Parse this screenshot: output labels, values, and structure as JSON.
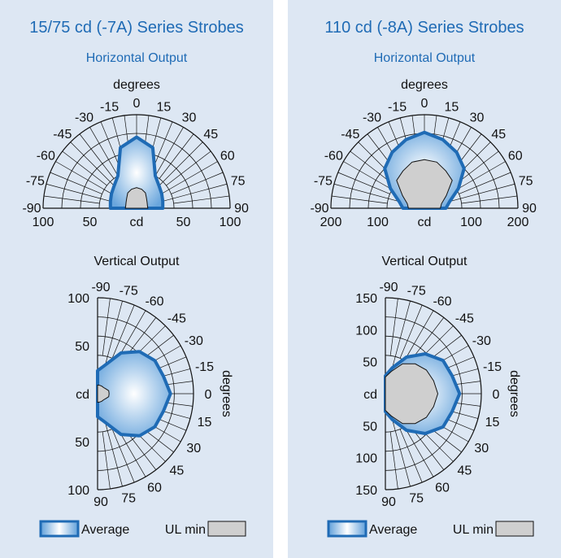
{
  "colors": {
    "panel_bg": "#dde7f3",
    "title": "#1f6bb5",
    "average_line": "#1f6bb5",
    "ul_min_fill": "#cfcfcf",
    "grid": "#111111"
  },
  "chart_data": [
    {
      "type": "polar",
      "title": "15/75 cd (-7A) Series Strobes",
      "horizontal": {
        "label": "Horizontal Output",
        "angle_unit_label": "degrees",
        "angle_ticks": [
          -90,
          -75,
          -60,
          -45,
          -30,
          -15,
          0,
          15,
          30,
          45,
          60,
          75,
          90
        ],
        "angle_tick_labels": [
          "-90",
          "-75",
          "-60",
          "-45",
          "-30",
          "-15",
          "0",
          "15",
          "30",
          "45",
          "60",
          "75",
          "90"
        ],
        "r_max": 100,
        "r_tick_labels": [
          "100",
          "50",
          "cd",
          "50",
          "100"
        ],
        "average": {
          "name": "Average",
          "angles": [
            -90,
            -75,
            -60,
            -45,
            -30,
            -15,
            0,
            15,
            30,
            45,
            60,
            75,
            90
          ],
          "values": [
            28,
            29,
            31,
            34,
            40,
            67,
            76,
            67,
            40,
            34,
            31,
            29,
            28
          ]
        },
        "ul_min": {
          "name": "UL min",
          "angles": [
            -90,
            -75,
            -60,
            -45,
            -30,
            -15,
            0,
            15,
            30,
            45,
            60,
            75,
            90
          ],
          "values": [
            12,
            12,
            13,
            15,
            19,
            21,
            22,
            21,
            19,
            15,
            13,
            12,
            12
          ]
        }
      },
      "vertical": {
        "label": "Vertical Output",
        "angle_unit_label": "degrees",
        "angle_ticks": [
          -90,
          -75,
          -60,
          -45,
          -30,
          -15,
          0,
          15,
          30,
          45,
          60,
          75,
          90
        ],
        "angle_tick_labels": [
          "-90",
          "-75",
          "-60",
          "-45",
          "-30",
          "-15",
          "0",
          "15",
          "30",
          "45",
          "60",
          "75",
          "90"
        ],
        "r_max": 100,
        "r_tick_labels": [
          "100",
          "50",
          "cd",
          "50",
          "100"
        ],
        "average": {
          "name": "Average",
          "angles": [
            -90,
            -75,
            -60,
            -45,
            -30,
            -15,
            0,
            15,
            30,
            45,
            60,
            75,
            90
          ],
          "values": [
            24,
            31,
            49,
            62,
            69,
            71,
            76,
            71,
            69,
            62,
            49,
            31,
            24
          ]
        },
        "ul_min": {
          "name": "UL min",
          "angles": [
            -90,
            -75,
            -60,
            -45,
            -30,
            -15,
            0,
            15,
            30,
            45,
            60,
            75,
            90
          ],
          "values": [
            9,
            9,
            9,
            9,
            10,
            12,
            12,
            12,
            10,
            9,
            9,
            9,
            9
          ]
        }
      },
      "legend": [
        "Average",
        "UL min"
      ]
    },
    {
      "type": "polar",
      "title": "110 cd (-8A) Series Strobes",
      "horizontal": {
        "label": "Horizontal Output",
        "angle_unit_label": "degrees",
        "angle_ticks": [
          -90,
          -75,
          -60,
          -45,
          -30,
          -15,
          0,
          15,
          30,
          45,
          60,
          75,
          90
        ],
        "angle_tick_labels": [
          "-90",
          "-75",
          "-60",
          "-45",
          "-30",
          "-15",
          "0",
          "15",
          "30",
          "45",
          "60",
          "75",
          "90"
        ],
        "r_max": 200,
        "r_tick_labels": [
          "200",
          "100",
          "cd",
          "100",
          "200"
        ],
        "average": {
          "name": "Average",
          "angles": [
            -90,
            -75,
            -60,
            -45,
            -30,
            -15,
            0,
            15,
            30,
            45,
            60,
            75,
            90
          ],
          "values": [
            46,
            56,
            84,
            120,
            138,
            152,
            162,
            152,
            138,
            120,
            84,
            56,
            46
          ]
        },
        "ul_min": {
          "name": "UL min",
          "angles": [
            -90,
            -75,
            -60,
            -45,
            -30,
            -15,
            0,
            15,
            30,
            45,
            60,
            75,
            90
          ],
          "values": [
            34,
            38,
            54,
            84,
            92,
            102,
            104,
            102,
            92,
            84,
            54,
            38,
            34
          ]
        }
      },
      "vertical": {
        "label": "Vertical Output",
        "angle_unit_label": "degrees",
        "angle_ticks": [
          -90,
          -75,
          -60,
          -45,
          -30,
          -15,
          0,
          15,
          30,
          45,
          60,
          75,
          90
        ],
        "angle_tick_labels": [
          "-90",
          "-75",
          "-60",
          "-45",
          "-30",
          "-15",
          "0",
          "15",
          "30",
          "45",
          "60",
          "75",
          "90"
        ],
        "r_max": 150,
        "r_tick_labels": [
          "150",
          "100",
          "50",
          "cd",
          "50",
          "100",
          "150"
        ],
        "average": {
          "name": "Average",
          "angles": [
            -90,
            -75,
            -60,
            -45,
            -30,
            -15,
            0,
            15,
            30,
            45,
            60,
            75,
            90
          ],
          "values": [
            28,
            42,
            66,
            88,
            104,
            108,
            116,
            108,
            104,
            88,
            66,
            42,
            28
          ]
        },
        "ul_min": {
          "name": "UL min",
          "angles": [
            -90,
            -75,
            -60,
            -45,
            -30,
            -15,
            0,
            15,
            30,
            45,
            60,
            75,
            90
          ],
          "values": [
            26,
            36,
            54,
            66,
            74,
            78,
            82,
            78,
            74,
            66,
            54,
            36,
            26
          ]
        }
      },
      "legend": [
        "Average",
        "UL min"
      ]
    }
  ]
}
